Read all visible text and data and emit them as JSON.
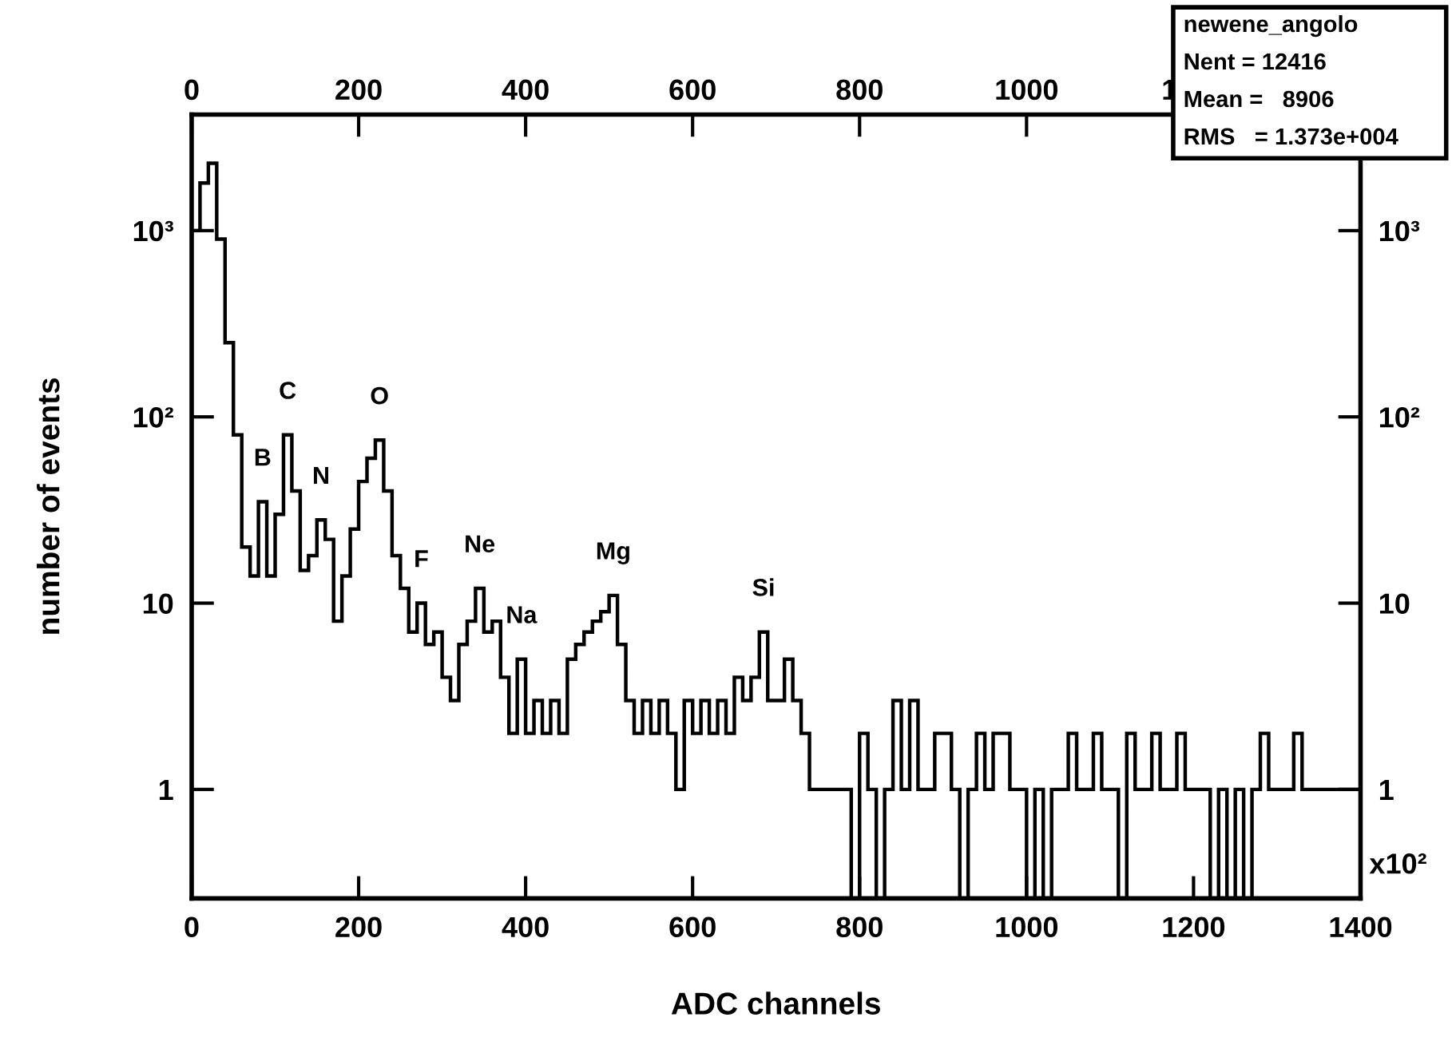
{
  "chart_data": {
    "type": "histogram",
    "xlabel": "ADC channels",
    "ylabel": "number of events",
    "bins": [
      0,
      10,
      20,
      30,
      40,
      50,
      60,
      70,
      80,
      90,
      100,
      110,
      120,
      130,
      140,
      150,
      160,
      170,
      180,
      190,
      200,
      210,
      220,
      230,
      240,
      250,
      260,
      270,
      280,
      290,
      300,
      310,
      320,
      330,
      340,
      350,
      360,
      370,
      380,
      390,
      400,
      410,
      420,
      430,
      440,
      450,
      460,
      470,
      480,
      490,
      500,
      510,
      520,
      530,
      540,
      550,
      560,
      570,
      580,
      590,
      600,
      610,
      620,
      630,
      640,
      650,
      660,
      670,
      680,
      690,
      700,
      710,
      720,
      730,
      740,
      750,
      760,
      770,
      780,
      790,
      800,
      810,
      820,
      830,
      840,
      850,
      860,
      870,
      880,
      890,
      900,
      910,
      920,
      930,
      940,
      950,
      960,
      970,
      980,
      990,
      1000,
      1010,
      1020,
      1030,
      1040,
      1050,
      1060,
      1070,
      1080,
      1090,
      1100,
      1110,
      1120,
      1130,
      1140,
      1150,
      1160,
      1170,
      1180,
      1190,
      1200,
      1210,
      1220,
      1230,
      1240,
      1250,
      1260,
      1270,
      1280,
      1290,
      1300,
      1310,
      1320,
      1330,
      1340,
      1350,
      1360,
      1370,
      1380,
      1390,
      1400
    ],
    "values": [
      1000,
      1800,
      2300,
      900,
      250,
      80,
      20,
      14,
      35,
      14,
      30,
      80,
      40,
      15,
      18,
      28,
      22,
      8,
      14,
      25,
      45,
      60,
      75,
      40,
      18,
      12,
      7,
      10,
      6,
      7,
      4,
      3,
      6,
      8,
      12,
      7,
      8,
      4,
      2,
      5,
      2,
      3,
      2,
      3,
      2,
      5,
      6,
      7,
      8,
      9,
      11,
      6,
      3,
      2,
      3,
      2,
      3,
      2,
      1,
      3,
      2,
      3,
      2,
      3,
      2,
      4,
      3,
      4,
      7,
      3,
      3,
      5,
      3,
      2,
      1,
      1,
      1,
      1,
      1,
      null,
      2,
      1,
      null,
      1,
      3,
      1,
      3,
      1,
      1,
      2,
      2,
      1,
      null,
      1,
      2,
      1,
      2,
      2,
      1,
      1,
      null,
      1,
      null,
      1,
      1,
      2,
      1,
      1,
      2,
      1,
      1,
      null,
      2,
      1,
      1,
      2,
      1,
      1,
      2,
      1,
      1,
      1,
      null,
      1,
      null,
      1,
      null,
      1,
      2,
      1,
      1,
      1,
      2,
      1,
      1,
      1,
      1,
      1,
      1,
      1
    ],
    "color": "#000000",
    "log": "y",
    "xlim": [
      0,
      1400
    ],
    "xticks": [
      0,
      200,
      400,
      600,
      800,
      1000,
      1200,
      1400
    ],
    "x2lim": [
      0,
      1400
    ],
    "x2ticks": [
      0,
      200,
      400,
      600,
      800,
      1000,
      1200
    ],
    "ylim": [
      0.26,
      4200
    ],
    "yticks": [
      {
        "value": 1,
        "label": "1"
      },
      {
        "value": 10,
        "label": "10"
      },
      {
        "value": 100,
        "label": "10²"
      },
      {
        "value": 1000,
        "label": "10³"
      }
    ],
    "grid": false,
    "annotations": [
      {
        "text": "B",
        "x": 85,
        "y": 35
      },
      {
        "text": "C",
        "x": 115,
        "y": 80
      },
      {
        "text": "N",
        "x": 155,
        "y": 28
      },
      {
        "text": "O",
        "x": 225,
        "y": 75
      },
      {
        "text": "F",
        "x": 275,
        "y": 10
      },
      {
        "text": "Ne",
        "x": 345,
        "y": 12
      },
      {
        "text": "Na",
        "x": 395,
        "y": 5
      },
      {
        "text": "Mg",
        "x": 505,
        "y": 11
      },
      {
        "text": "Si",
        "x": 685,
        "y": 7
      },
      "newene_angolo",
      "Nent = 12416",
      "Mean =   8906",
      "RMS   = 1.373e+004",
      "x10²"
    ]
  }
}
